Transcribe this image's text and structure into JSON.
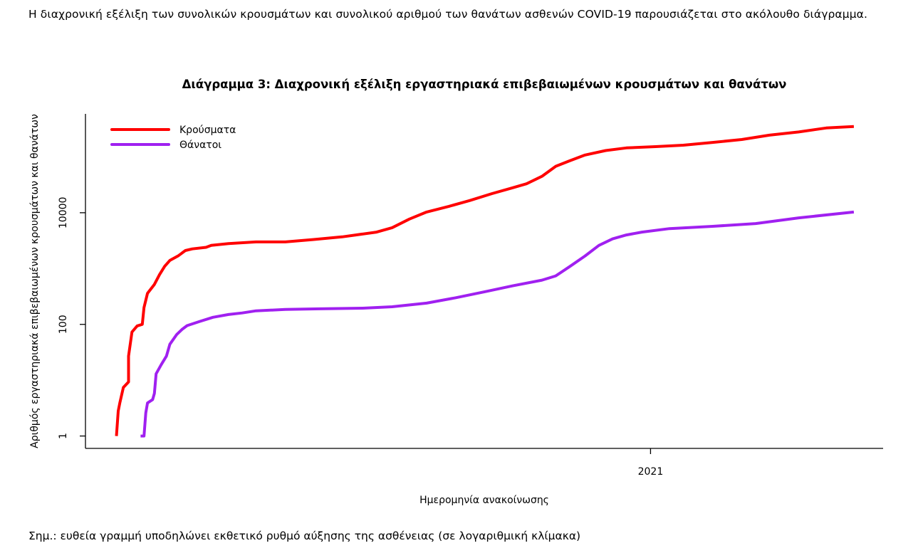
{
  "document": {
    "intro_text": "Η διαχρονική εξέλιξη των συνολικών κρουσμάτων και συνολικού αριθμού των θανάτων ασθενών COVID-19 παρουσιάζεται στο ακόλουθο διάγραμμα.",
    "note": "Σημ.: ευθεία γραμμή υποδηλώνει εκθετικό ρυθμό αύξησης της ασθένειας (σε λογαριθμική κλίμακα)"
  },
  "chart_data": {
    "type": "line",
    "title": "Διάγραμμα 3: Διαχρονική εξέλιξη εργαστηριακά επιβεβαιωμένων κρουσμάτων και θανάτων",
    "xlabel": "Ημερομηνία ανακοίνωσης",
    "ylabel": "Αριθμός εργαστηριακά επιβεβαιωμένων κρουσμάτων και θανάτων",
    "x_units": "days since first reported case",
    "xlim": [
      -18,
      445
    ],
    "y_scale": "log10",
    "ylim": [
      0.6,
      590000
    ],
    "x_ticks": [
      {
        "value": 310,
        "label": "2021"
      }
    ],
    "y_ticks": [
      {
        "value": 1,
        "label": "1"
      },
      {
        "value": 100,
        "label": "100"
      },
      {
        "value": 10000,
        "label": "10000"
      }
    ],
    "grid": false,
    "legend_position": "top-left",
    "series": [
      {
        "name": "Κρούσματα",
        "color": "#ff0000",
        "points": [
          [
            0,
            1
          ],
          [
            1,
            2.8
          ],
          [
            2,
            4
          ],
          [
            4,
            7.4
          ],
          [
            7,
            9.3
          ],
          [
            7,
            27
          ],
          [
            9,
            73
          ],
          [
            12,
            94
          ],
          [
            15,
            100
          ],
          [
            16,
            200
          ],
          [
            18,
            360
          ],
          [
            22,
            520
          ],
          [
            25,
            780
          ],
          [
            28,
            1100
          ],
          [
            31,
            1400
          ],
          [
            36,
            1700
          ],
          [
            40,
            2100
          ],
          [
            44,
            2250
          ],
          [
            52,
            2400
          ],
          [
            55,
            2600
          ],
          [
            65,
            2800
          ],
          [
            81,
            3000
          ],
          [
            98,
            3000
          ],
          [
            114,
            3300
          ],
          [
            131,
            3700
          ],
          [
            139,
            4000
          ],
          [
            151,
            4500
          ],
          [
            160,
            5400
          ],
          [
            170,
            7700
          ],
          [
            180,
            10300
          ],
          [
            193,
            13000
          ],
          [
            205,
            16500
          ],
          [
            218,
            22000
          ],
          [
            230,
            28000
          ],
          [
            238,
            33000
          ],
          [
            247,
            45000
          ],
          [
            255,
            68000
          ],
          [
            263,
            85000
          ],
          [
            272,
            108000
          ],
          [
            284,
            130000
          ],
          [
            296,
            145000
          ],
          [
            313,
            153000
          ],
          [
            329,
            162000
          ],
          [
            346,
            182000
          ],
          [
            363,
            205000
          ],
          [
            379,
            245000
          ],
          [
            396,
            280000
          ],
          [
            412,
            330000
          ],
          [
            428,
            350000
          ]
        ]
      },
      {
        "name": "Θάνατοι",
        "color": "#a020f0",
        "points": [
          [
            14,
            1
          ],
          [
            16,
            1
          ],
          [
            17,
            2.6
          ],
          [
            18,
            3.9
          ],
          [
            21,
            4.5
          ],
          [
            22,
            5.8
          ],
          [
            23,
            13
          ],
          [
            26,
            19
          ],
          [
            29,
            27
          ],
          [
            31,
            44
          ],
          [
            35,
            66
          ],
          [
            38,
            81
          ],
          [
            41,
            95
          ],
          [
            48,
            112
          ],
          [
            56,
            134
          ],
          [
            65,
            150
          ],
          [
            73,
            160
          ],
          [
            81,
            175
          ],
          [
            98,
            185
          ],
          [
            118,
            190
          ],
          [
            143,
            195
          ],
          [
            160,
            207
          ],
          [
            180,
            240
          ],
          [
            197,
            300
          ],
          [
            214,
            385
          ],
          [
            230,
            490
          ],
          [
            247,
            620
          ],
          [
            255,
            740
          ],
          [
            263,
            1080
          ],
          [
            272,
            1680
          ],
          [
            280,
            2600
          ],
          [
            288,
            3400
          ],
          [
            296,
            4000
          ],
          [
            305,
            4500
          ],
          [
            321,
            5200
          ],
          [
            346,
            5700
          ],
          [
            371,
            6400
          ],
          [
            396,
            8100
          ],
          [
            428,
            10300
          ]
        ]
      }
    ]
  }
}
